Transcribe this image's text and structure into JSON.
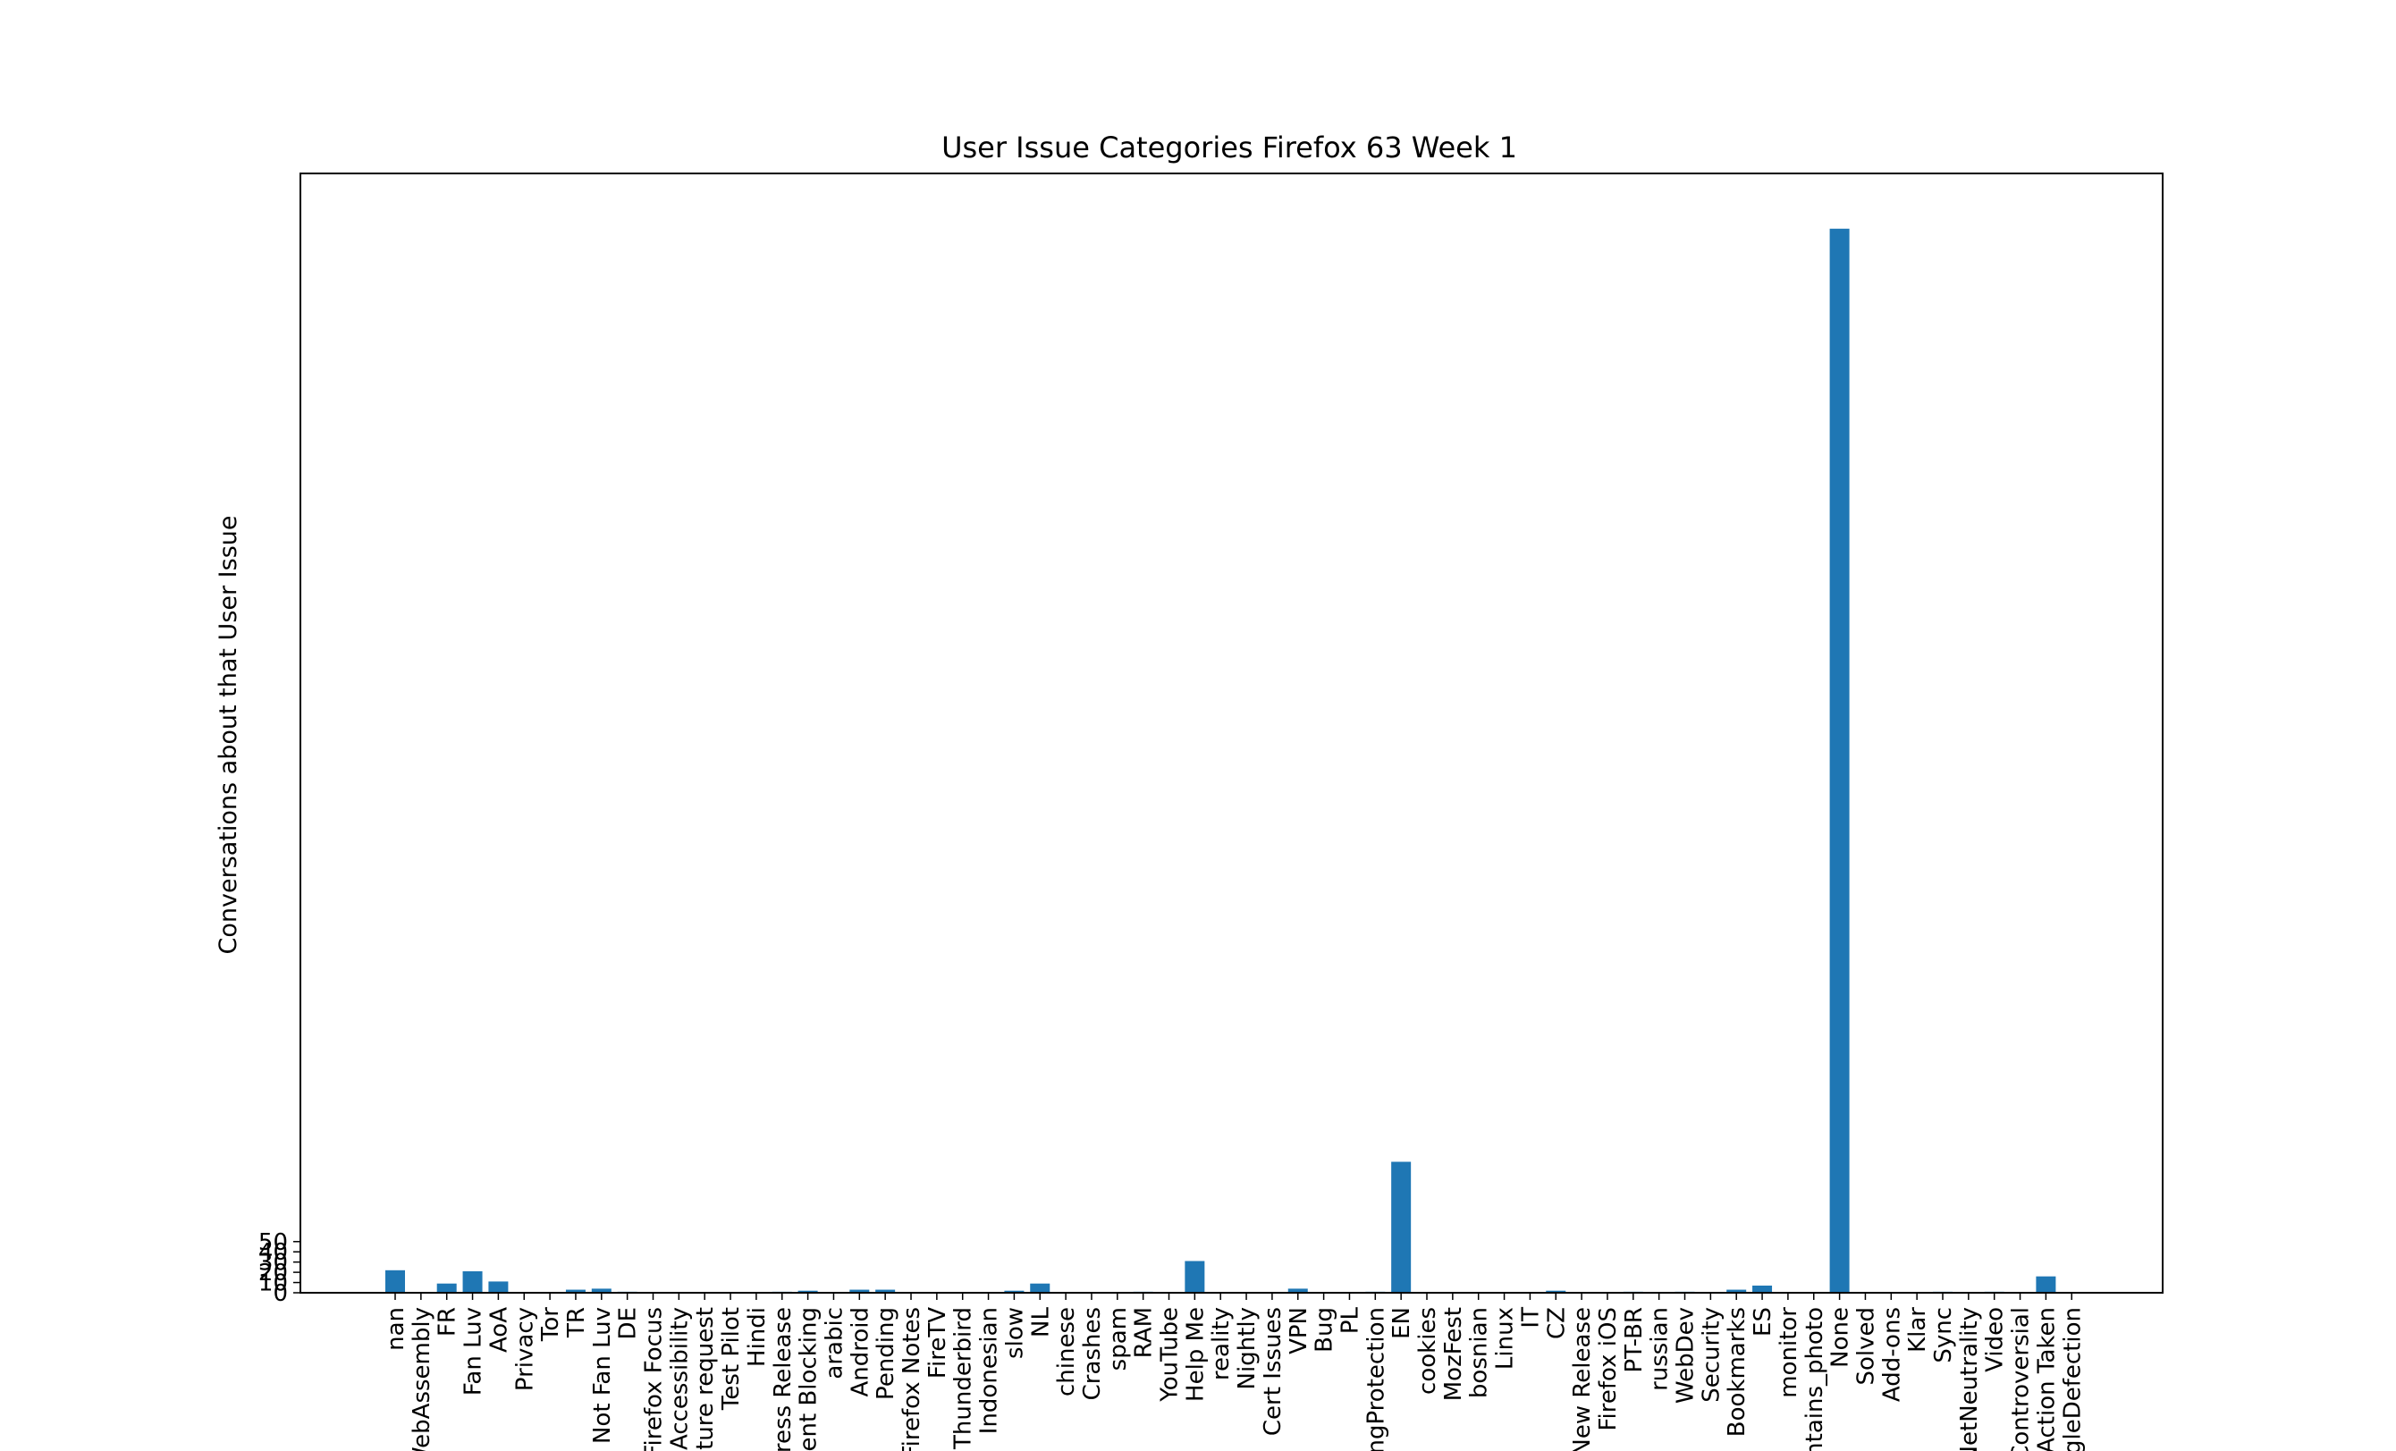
{
  "chart_data": {
    "type": "bar",
    "title": "User Issue Categories Firefox 63 Week 1",
    "xlabel": "",
    "ylabel": "Conversations about that User Issue",
    "ylim": [
      0,
      1050
    ],
    "grid": false,
    "legend": "none",
    "bar_color": "#1f77b4",
    "categories": [
      "nan",
      "WebAssembly",
      "FR",
      "Fan Luv",
      "AoA",
      "Privacy",
      "Tor",
      "TR",
      "Not Fan Luv",
      "DE",
      "Firefox Focus",
      "Accessibility",
      "Feature request",
      "Test Pilot",
      "Hindi",
      "Express Release",
      "Content Blocking",
      "arabic",
      "Android",
      "Pending",
      "Firefox Notes",
      "FireTV",
      "Thunderbird",
      "Indonesian",
      "slow",
      "NL",
      "chinese",
      "Crashes",
      "spam",
      "RAM",
      "YouTube",
      "Help Me",
      "reality",
      "Nightly",
      "Cert Issues",
      "VPN",
      "Bug",
      "PL",
      "TrackingProtection",
      "EN",
      "cookies",
      "MozFest",
      "bosnian",
      "Linux",
      "IT",
      "CZ",
      "New Release",
      "Firefox iOS",
      "PT-BR",
      "russian",
      "WebDev",
      "Security",
      "Bookmarks",
      "ES",
      "monitor",
      "contains_photo",
      "None",
      "Solved",
      "Add-ons",
      "Klar",
      "Sync",
      "NetNeutrality",
      "Video",
      "Controversial",
      "Action Taken",
      "GoogleDefection"
    ],
    "values": [
      22,
      0,
      9,
      21,
      11,
      0,
      0,
      3,
      4,
      1,
      0,
      0,
      0,
      0,
      0,
      1,
      2,
      0,
      3,
      3,
      0,
      0,
      0,
      0,
      2,
      9,
      0,
      0,
      0,
      1,
      0,
      31,
      0,
      0,
      0,
      4,
      0,
      0,
      1,
      128,
      0,
      0,
      0,
      0,
      0,
      2,
      0,
      0,
      1,
      0,
      1,
      0,
      3,
      7,
      0,
      0,
      1040,
      0,
      0,
      0,
      1,
      0,
      1,
      0,
      16,
      0
    ],
    "yticks": [
      "0",
      "10",
      "20",
      "30",
      "40",
      "50"
    ]
  }
}
